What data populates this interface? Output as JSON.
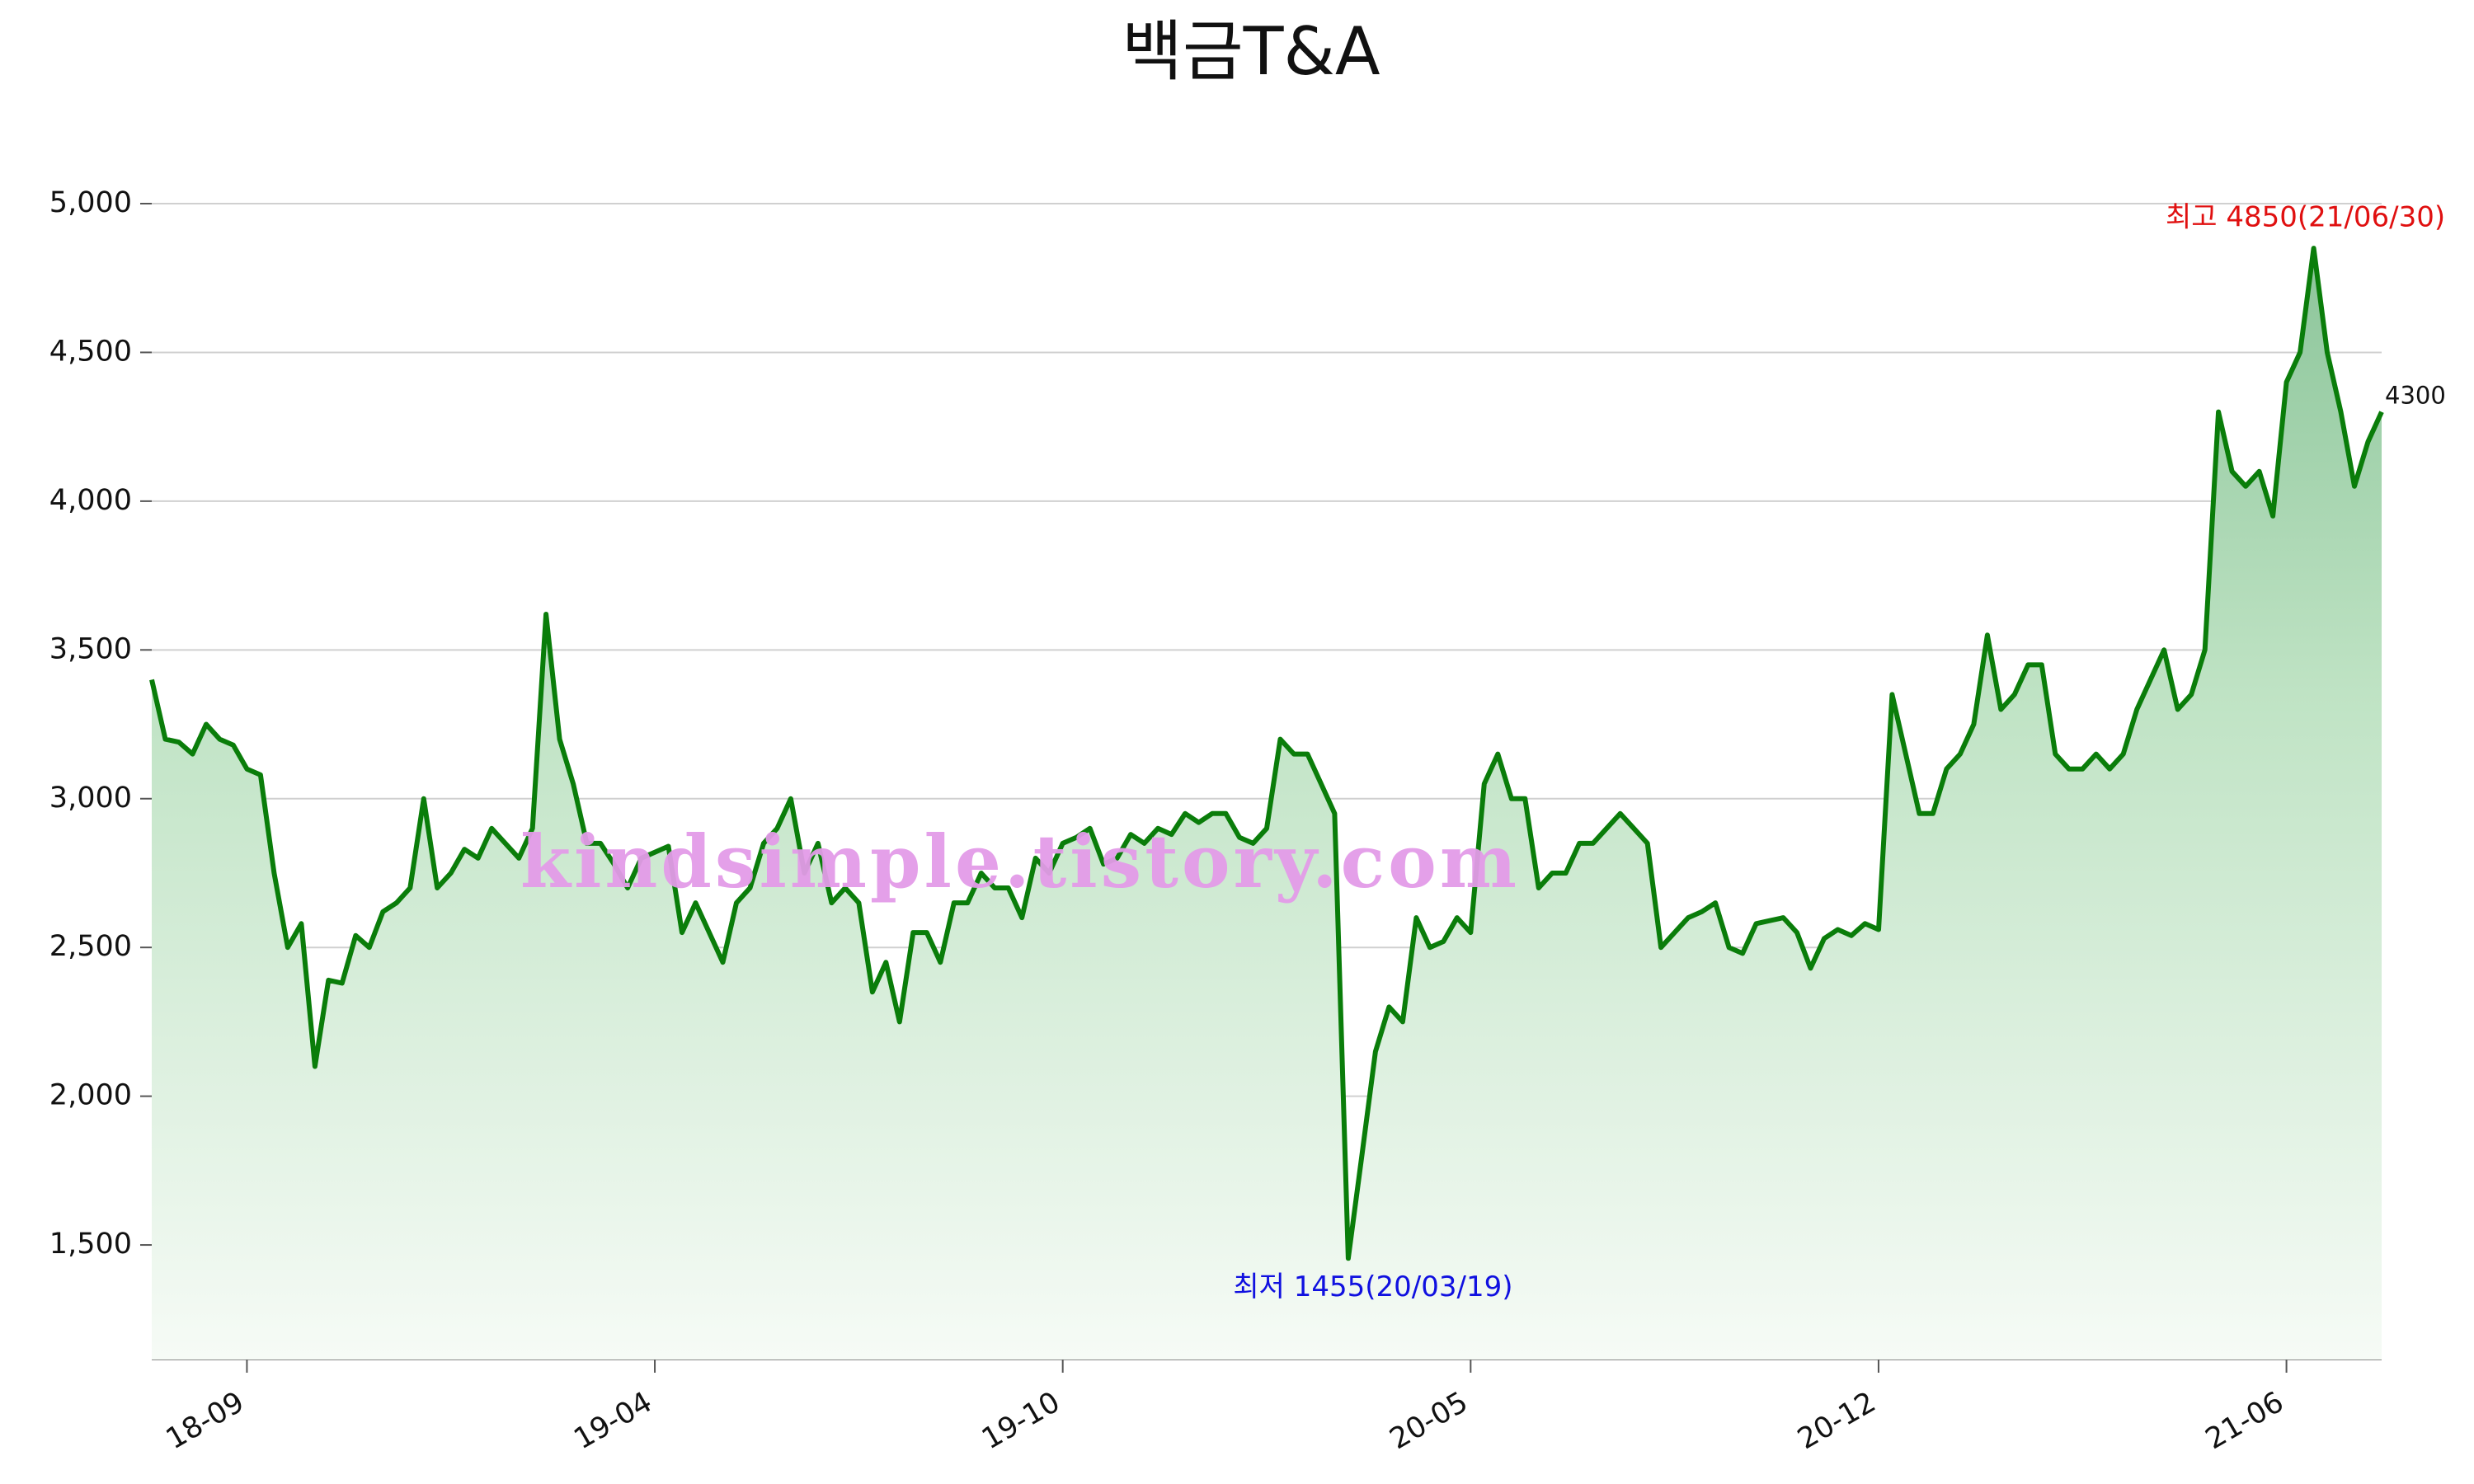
{
  "chart_data": {
    "type": "area-line",
    "title": "백금T&A",
    "watermark": "kindsimple.tistory.com",
    "annotations": {
      "high": "최고 4850(21/06/30)",
      "low": "최저 1455(20/03/19)"
    },
    "categories": [
      null,
      null,
      null,
      null,
      null,
      null,
      null,
      "18-09",
      null,
      null,
      null,
      null,
      null,
      null,
      null,
      null,
      null,
      null,
      null,
      null,
      null,
      null,
      null,
      null,
      null,
      null,
      null,
      null,
      null,
      null,
      null,
      null,
      null,
      null,
      null,
      null,
      null,
      "19-04",
      null,
      null,
      null,
      null,
      null,
      null,
      null,
      null,
      null,
      null,
      null,
      null,
      null,
      null,
      null,
      null,
      null,
      null,
      null,
      null,
      null,
      null,
      null,
      null,
      null,
      null,
      null,
      null,
      null,
      "19-10",
      null,
      null,
      null,
      null,
      null,
      null,
      null,
      null,
      null,
      null,
      null,
      null,
      null,
      null,
      null,
      null,
      null,
      null,
      null,
      null,
      null,
      null,
      null,
      null,
      null,
      null,
      null,
      null,
      null,
      "20-05",
      null,
      null,
      null,
      null,
      null,
      null,
      null,
      null,
      null,
      null,
      null,
      null,
      null,
      null,
      null,
      null,
      null,
      null,
      null,
      null,
      null,
      null,
      null,
      null,
      null,
      null,
      null,
      null,
      null,
      "20-12",
      null,
      null,
      null,
      null,
      null,
      null,
      null,
      null,
      null,
      null,
      null,
      null,
      null,
      null,
      null,
      null,
      null,
      null,
      null,
      null,
      null,
      null,
      null,
      null,
      null,
      null,
      null,
      null,
      null,
      "21-06",
      null,
      null,
      null,
      null,
      null,
      null,
      null
    ],
    "values": [
      3400,
      3200,
      3190,
      3150,
      3250,
      3200,
      3180,
      3100,
      3080,
      2750,
      2500,
      2580,
      2100,
      2390,
      2380,
      2540,
      2500,
      2620,
      2650,
      2700,
      3000,
      2700,
      2750,
      2830,
      2800,
      2900,
      2850,
      2800,
      2900,
      3620,
      3200,
      3050,
      2850,
      2850,
      2780,
      2700,
      2800,
      2820,
      2840,
      2550,
      2650,
      2550,
      2450,
      2650,
      2700,
      2850,
      2900,
      3000,
      2750,
      2850,
      2650,
      2700,
      2650,
      2350,
      2450,
      2250,
      2550,
      2550,
      2450,
      2650,
      2650,
      2750,
      2700,
      2700,
      2600,
      2800,
      2750,
      2850,
      2870,
      2900,
      2780,
      2800,
      2880,
      2850,
      2900,
      2880,
      2950,
      2920,
      2950,
      2950,
      2870,
      2850,
      2900,
      3200,
      3150,
      3150,
      3050,
      2950,
      1455,
      1800,
      2150,
      2300,
      2250,
      2600,
      2500,
      2520,
      2600,
      2550,
      3050,
      3150,
      3000,
      3000,
      2700,
      2750,
      2750,
      2850,
      2850,
      2900,
      2950,
      2900,
      2850,
      2500,
      2550,
      2600,
      2620,
      2650,
      2500,
      2480,
      2580,
      2590,
      2600,
      2550,
      2430,
      2530,
      2560,
      2540,
      2580,
      2560,
      3350,
      3150,
      2950,
      2950,
      3100,
      3150,
      3250,
      3550,
      3300,
      3350,
      3450,
      3450,
      3150,
      3100,
      3100,
      3150,
      3100,
      3150,
      3300,
      3400,
      3500,
      3300,
      3350,
      3500,
      4300,
      4100,
      4050,
      4100,
      3950,
      4400,
      4500,
      4850,
      4500,
      4300,
      4050,
      4200,
      4300
    ],
    "color": "#0a7d0a",
    "ylim": [
      1115,
      5000
    ],
    "yticks": [
      {
        "value": 1500,
        "label": "1,500"
      },
      {
        "value": 2000,
        "label": "2,000"
      },
      {
        "value": 2500,
        "label": "2,500"
      },
      {
        "value": 3000,
        "label": "3,000"
      },
      {
        "value": 3500,
        "label": "3,500"
      },
      {
        "value": 4000,
        "label": "4,000"
      },
      {
        "value": 4500,
        "label": "4,500"
      },
      {
        "value": 5000,
        "label": "5,000"
      }
    ],
    "grid": true
  }
}
